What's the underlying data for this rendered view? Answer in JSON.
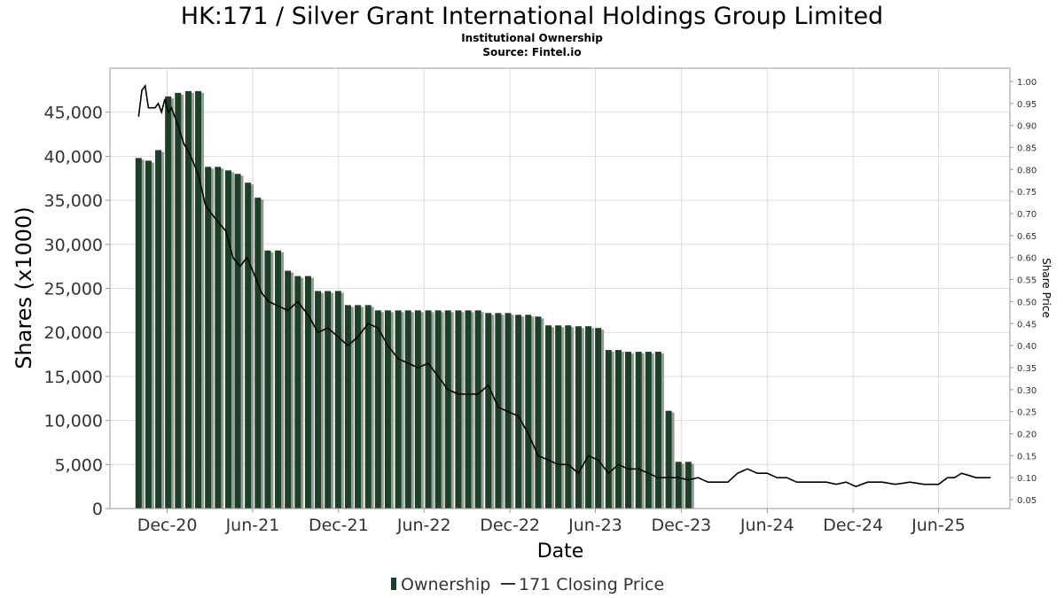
{
  "chart_data": {
    "type": "bar",
    "title": "HK:171 / Silver Grant International Holdings Group Limited",
    "subtitle": "Institutional Ownership",
    "source": "Source: Fintel.io",
    "xlabel": "Date",
    "ylabel": "Shares (x1000)",
    "y2label": "Share Price",
    "x_date_range": [
      "2020-08-01",
      "2025-10-31"
    ],
    "xticks": [
      {
        "label": "Dec-20",
        "date": "2020-12-01"
      },
      {
        "label": "Jun-21",
        "date": "2021-06-01"
      },
      {
        "label": "Dec-21",
        "date": "2021-12-01"
      },
      {
        "label": "Jun-22",
        "date": "2022-06-01"
      },
      {
        "label": "Dec-22",
        "date": "2022-12-01"
      },
      {
        "label": "Jun-23",
        "date": "2023-06-01"
      },
      {
        "label": "Dec-23",
        "date": "2023-12-01"
      },
      {
        "label": "Jun-24",
        "date": "2024-06-01"
      },
      {
        "label": "Dec-24",
        "date": "2024-12-01"
      },
      {
        "label": "Jun-25",
        "date": "2025-06-01"
      }
    ],
    "ylim": [
      0,
      50000
    ],
    "yticks": [
      {
        "value": 0,
        "label": "0"
      },
      {
        "value": 5000,
        "label": "5,000"
      },
      {
        "value": 10000,
        "label": "10,000"
      },
      {
        "value": 15000,
        "label": "15,000"
      },
      {
        "value": 20000,
        "label": "20,000"
      },
      {
        "value": 25000,
        "label": "25,000"
      },
      {
        "value": 30000,
        "label": "30,000"
      },
      {
        "value": 35000,
        "label": "35,000"
      },
      {
        "value": 40000,
        "label": "40,000"
      },
      {
        "value": 45000,
        "label": "45,000"
      }
    ],
    "y2lim": [
      0.03,
      1.03
    ],
    "y2ticks": [
      {
        "value": 0.05,
        "label": "0.05"
      },
      {
        "value": 0.1,
        "label": "0.10"
      },
      {
        "value": 0.15,
        "label": "0.15"
      },
      {
        "value": 0.2,
        "label": "0.20"
      },
      {
        "value": 0.25,
        "label": "0.25"
      },
      {
        "value": 0.3,
        "label": "0.30"
      },
      {
        "value": 0.35,
        "label": "0.35"
      },
      {
        "value": 0.4,
        "label": "0.40"
      },
      {
        "value": 0.45,
        "label": "0.45"
      },
      {
        "value": 0.5,
        "label": "0.50"
      },
      {
        "value": 0.55,
        "label": "0.55"
      },
      {
        "value": 0.6,
        "label": "0.60"
      },
      {
        "value": 0.65,
        "label": "0.65"
      },
      {
        "value": 0.7,
        "label": "0.70"
      },
      {
        "value": 0.75,
        "label": "0.75"
      },
      {
        "value": 0.8,
        "label": "0.80"
      },
      {
        "value": 0.85,
        "label": "0.85"
      },
      {
        "value": 0.9,
        "label": "0.90"
      },
      {
        "value": 0.95,
        "label": "0.95"
      },
      {
        "value": 1.0,
        "label": "1.00"
      }
    ],
    "grid": true,
    "legend_position": "bottom-center",
    "colors": {
      "bar": "#1b4125",
      "bar_shadow": "#999999",
      "line": "#000000",
      "grid": "#dddddd",
      "frame": "#999999"
    },
    "series": [
      {
        "name": "Ownership",
        "type": "bar",
        "axis": "left",
        "points": [
          {
            "date": "2020-10-01",
            "value": 39800
          },
          {
            "date": "2020-10-22",
            "value": 39500
          },
          {
            "date": "2020-11-12",
            "value": 40700
          },
          {
            "date": "2020-12-03",
            "value": 46800
          },
          {
            "date": "2020-12-24",
            "value": 47200
          },
          {
            "date": "2021-01-15",
            "value": 47400
          },
          {
            "date": "2021-02-05",
            "value": 47400
          },
          {
            "date": "2021-02-26",
            "value": 38800
          },
          {
            "date": "2021-03-19",
            "value": 38800
          },
          {
            "date": "2021-04-10",
            "value": 38400
          },
          {
            "date": "2021-04-30",
            "value": 38000
          },
          {
            "date": "2021-05-22",
            "value": 37000
          },
          {
            "date": "2021-06-12",
            "value": 35300
          },
          {
            "date": "2021-07-03",
            "value": 29300
          },
          {
            "date": "2021-07-25",
            "value": 29300
          },
          {
            "date": "2021-08-15",
            "value": 27000
          },
          {
            "date": "2021-09-05",
            "value": 26400
          },
          {
            "date": "2021-09-27",
            "value": 26400
          },
          {
            "date": "2021-10-18",
            "value": 24700
          },
          {
            "date": "2021-11-08",
            "value": 24700
          },
          {
            "date": "2021-11-30",
            "value": 24700
          },
          {
            "date": "2021-12-21",
            "value": 23100
          },
          {
            "date": "2022-01-11",
            "value": 23100
          },
          {
            "date": "2022-02-02",
            "value": 23100
          },
          {
            "date": "2022-02-23",
            "value": 22500
          },
          {
            "date": "2022-03-16",
            "value": 22500
          },
          {
            "date": "2022-04-07",
            "value": 22500
          },
          {
            "date": "2022-04-28",
            "value": 22500
          },
          {
            "date": "2022-05-19",
            "value": 22500
          },
          {
            "date": "2022-06-10",
            "value": 22500
          },
          {
            "date": "2022-07-01",
            "value": 22500
          },
          {
            "date": "2022-07-22",
            "value": 22500
          },
          {
            "date": "2022-08-13",
            "value": 22500
          },
          {
            "date": "2022-09-03",
            "value": 22500
          },
          {
            "date": "2022-09-24",
            "value": 22500
          },
          {
            "date": "2022-10-16",
            "value": 22200
          },
          {
            "date": "2022-11-06",
            "value": 22200
          },
          {
            "date": "2022-11-27",
            "value": 22200
          },
          {
            "date": "2022-12-19",
            "value": 22000
          },
          {
            "date": "2023-01-09",
            "value": 22000
          },
          {
            "date": "2023-01-30",
            "value": 21800
          },
          {
            "date": "2023-02-21",
            "value": 20800
          },
          {
            "date": "2023-03-14",
            "value": 20800
          },
          {
            "date": "2023-04-04",
            "value": 20800
          },
          {
            "date": "2023-04-26",
            "value": 20700
          },
          {
            "date": "2023-05-17",
            "value": 20700
          },
          {
            "date": "2023-06-07",
            "value": 20500
          },
          {
            "date": "2023-06-29",
            "value": 18000
          },
          {
            "date": "2023-07-20",
            "value": 18000
          },
          {
            "date": "2023-08-10",
            "value": 17800
          },
          {
            "date": "2023-09-01",
            "value": 17800
          },
          {
            "date": "2023-09-22",
            "value": 17800
          },
          {
            "date": "2023-10-13",
            "value": 17800
          },
          {
            "date": "2023-11-04",
            "value": 11100
          },
          {
            "date": "2023-11-25",
            "value": 5300
          },
          {
            "date": "2023-12-16",
            "value": 5300
          }
        ]
      },
      {
        "name": "171 Closing Price",
        "type": "line",
        "axis": "right",
        "points": [
          {
            "date": "2020-10-01",
            "value": 0.92
          },
          {
            "date": "2020-10-08",
            "value": 0.98
          },
          {
            "date": "2020-10-15",
            "value": 0.99
          },
          {
            "date": "2020-10-22",
            "value": 0.94
          },
          {
            "date": "2020-10-29",
            "value": 0.94
          },
          {
            "date": "2020-11-05",
            "value": 0.94
          },
          {
            "date": "2020-11-12",
            "value": 0.95
          },
          {
            "date": "2020-11-19",
            "value": 0.93
          },
          {
            "date": "2020-11-26",
            "value": 0.96
          },
          {
            "date": "2020-12-03",
            "value": 0.93
          },
          {
            "date": "2020-12-10",
            "value": 0.94
          },
          {
            "date": "2020-12-17",
            "value": 0.92
          },
          {
            "date": "2020-12-24",
            "value": 0.9
          },
          {
            "date": "2021-01-05",
            "value": 0.86
          },
          {
            "date": "2021-01-20",
            "value": 0.83
          },
          {
            "date": "2021-02-05",
            "value": 0.79
          },
          {
            "date": "2021-02-20",
            "value": 0.72
          },
          {
            "date": "2021-03-05",
            "value": 0.7
          },
          {
            "date": "2021-03-20",
            "value": 0.68
          },
          {
            "date": "2021-04-05",
            "value": 0.66
          },
          {
            "date": "2021-04-20",
            "value": 0.6
          },
          {
            "date": "2021-05-05",
            "value": 0.58
          },
          {
            "date": "2021-05-20",
            "value": 0.6
          },
          {
            "date": "2021-06-05",
            "value": 0.56
          },
          {
            "date": "2021-06-20",
            "value": 0.52
          },
          {
            "date": "2021-07-05",
            "value": 0.5
          },
          {
            "date": "2021-07-25",
            "value": 0.49
          },
          {
            "date": "2021-08-15",
            "value": 0.48
          },
          {
            "date": "2021-09-05",
            "value": 0.5
          },
          {
            "date": "2021-09-27",
            "value": 0.47
          },
          {
            "date": "2021-10-18",
            "value": 0.43
          },
          {
            "date": "2021-11-08",
            "value": 0.44
          },
          {
            "date": "2021-11-30",
            "value": 0.42
          },
          {
            "date": "2021-12-21",
            "value": 0.4
          },
          {
            "date": "2022-01-11",
            "value": 0.42
          },
          {
            "date": "2022-02-02",
            "value": 0.45
          },
          {
            "date": "2022-02-23",
            "value": 0.44
          },
          {
            "date": "2022-03-16",
            "value": 0.4
          },
          {
            "date": "2022-04-07",
            "value": 0.37
          },
          {
            "date": "2022-04-28",
            "value": 0.36
          },
          {
            "date": "2022-05-19",
            "value": 0.35
          },
          {
            "date": "2022-06-10",
            "value": 0.36
          },
          {
            "date": "2022-07-01",
            "value": 0.33
          },
          {
            "date": "2022-07-22",
            "value": 0.3
          },
          {
            "date": "2022-08-13",
            "value": 0.29
          },
          {
            "date": "2022-09-03",
            "value": 0.29
          },
          {
            "date": "2022-09-24",
            "value": 0.29
          },
          {
            "date": "2022-10-16",
            "value": 0.31
          },
          {
            "date": "2022-11-06",
            "value": 0.26
          },
          {
            "date": "2022-11-27",
            "value": 0.25
          },
          {
            "date": "2022-12-19",
            "value": 0.24
          },
          {
            "date": "2023-01-09",
            "value": 0.2
          },
          {
            "date": "2023-01-30",
            "value": 0.15
          },
          {
            "date": "2023-02-21",
            "value": 0.14
          },
          {
            "date": "2023-03-14",
            "value": 0.13
          },
          {
            "date": "2023-04-04",
            "value": 0.13
          },
          {
            "date": "2023-04-26",
            "value": 0.11
          },
          {
            "date": "2023-05-17",
            "value": 0.15
          },
          {
            "date": "2023-06-07",
            "value": 0.14
          },
          {
            "date": "2023-06-29",
            "value": 0.11
          },
          {
            "date": "2023-07-20",
            "value": 0.13
          },
          {
            "date": "2023-08-10",
            "value": 0.12
          },
          {
            "date": "2023-09-01",
            "value": 0.12
          },
          {
            "date": "2023-09-22",
            "value": 0.11
          },
          {
            "date": "2023-10-13",
            "value": 0.1
          },
          {
            "date": "2023-11-04",
            "value": 0.1
          },
          {
            "date": "2023-11-25",
            "value": 0.1
          },
          {
            "date": "2023-12-16",
            "value": 0.095
          },
          {
            "date": "2024-01-06",
            "value": 0.1
          },
          {
            "date": "2024-01-27",
            "value": 0.09
          },
          {
            "date": "2024-02-17",
            "value": 0.09
          },
          {
            "date": "2024-03-09",
            "value": 0.09
          },
          {
            "date": "2024-03-30",
            "value": 0.11
          },
          {
            "date": "2024-04-20",
            "value": 0.12
          },
          {
            "date": "2024-05-11",
            "value": 0.11
          },
          {
            "date": "2024-06-01",
            "value": 0.11
          },
          {
            "date": "2024-06-22",
            "value": 0.1
          },
          {
            "date": "2024-07-13",
            "value": 0.1
          },
          {
            "date": "2024-08-03",
            "value": 0.09
          },
          {
            "date": "2024-08-24",
            "value": 0.09
          },
          {
            "date": "2024-09-14",
            "value": 0.09
          },
          {
            "date": "2024-10-05",
            "value": 0.09
          },
          {
            "date": "2024-10-26",
            "value": 0.085
          },
          {
            "date": "2024-11-16",
            "value": 0.09
          },
          {
            "date": "2024-12-07",
            "value": 0.08
          },
          {
            "date": "2025-01-01",
            "value": 0.09
          },
          {
            "date": "2025-02-01",
            "value": 0.09
          },
          {
            "date": "2025-03-01",
            "value": 0.085
          },
          {
            "date": "2025-04-01",
            "value": 0.09
          },
          {
            "date": "2025-05-01",
            "value": 0.085
          },
          {
            "date": "2025-06-01",
            "value": 0.085
          },
          {
            "date": "2025-06-20",
            "value": 0.1
          },
          {
            "date": "2025-07-05",
            "value": 0.1
          },
          {
            "date": "2025-07-20",
            "value": 0.11
          },
          {
            "date": "2025-08-05",
            "value": 0.105
          },
          {
            "date": "2025-08-20",
            "value": 0.1
          },
          {
            "date": "2025-09-05",
            "value": 0.1
          },
          {
            "date": "2025-09-20",
            "value": 0.1
          }
        ]
      }
    ]
  }
}
